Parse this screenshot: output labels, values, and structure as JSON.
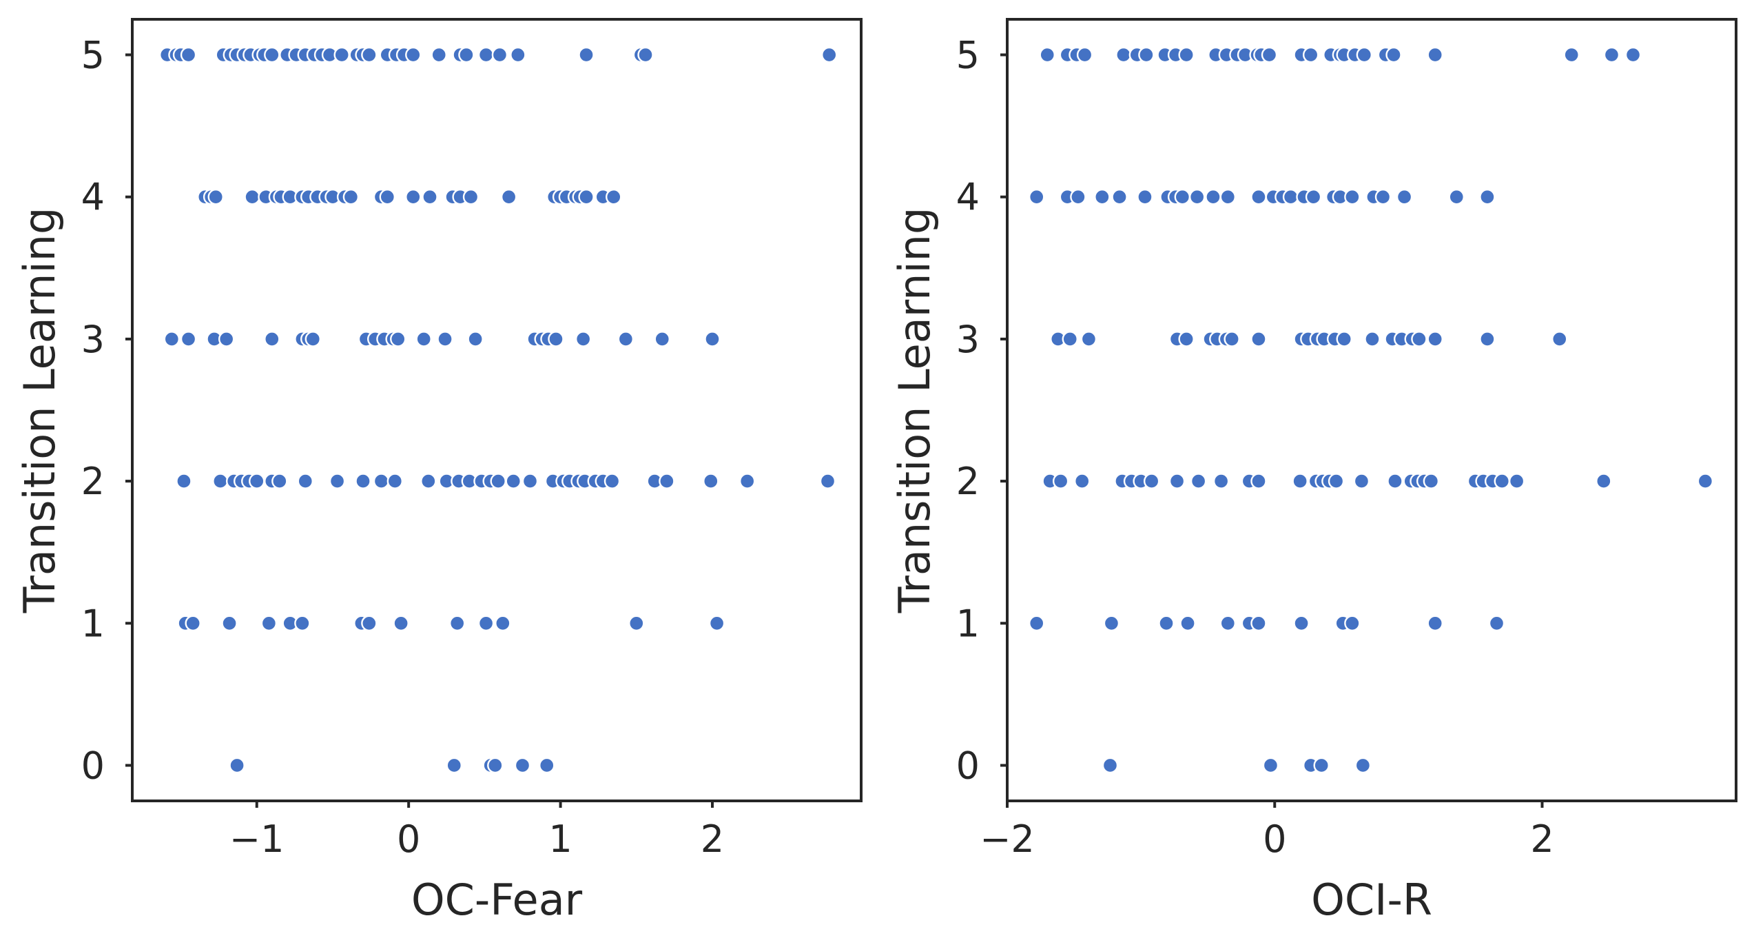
{
  "chart_data": [
    {
      "type": "scatter",
      "xlabel": "OC-Fear",
      "ylabel": "Transition Learning",
      "xlim": [
        -1.82,
        2.98
      ],
      "ylim": [
        -0.25,
        5.25
      ],
      "xticks": [
        -1,
        0,
        1,
        2
      ],
      "xtick_labels": [
        "−1",
        "0",
        "1",
        "2"
      ],
      "yticks": [
        0,
        1,
        2,
        3,
        4,
        5
      ],
      "ytick_labels": [
        "0",
        "1",
        "2",
        "3",
        "4",
        "5"
      ],
      "grid": false,
      "point_color": "#4472c4",
      "points": [
        {
          "x": -1.59,
          "y": 5
        },
        {
          "x": -1.53,
          "y": 5
        },
        {
          "x": -1.5,
          "y": 5
        },
        {
          "x": -1.45,
          "y": 5
        },
        {
          "x": -1.22,
          "y": 5
        },
        {
          "x": -1.17,
          "y": 5
        },
        {
          "x": -1.13,
          "y": 5
        },
        {
          "x": -1.08,
          "y": 5
        },
        {
          "x": -1.04,
          "y": 5
        },
        {
          "x": -0.98,
          "y": 5
        },
        {
          "x": -0.95,
          "y": 5
        },
        {
          "x": -0.9,
          "y": 5
        },
        {
          "x": -0.8,
          "y": 5
        },
        {
          "x": -0.74,
          "y": 5
        },
        {
          "x": -0.68,
          "y": 5
        },
        {
          "x": -0.62,
          "y": 5
        },
        {
          "x": -0.57,
          "y": 5
        },
        {
          "x": -0.52,
          "y": 5
        },
        {
          "x": -0.44,
          "y": 5
        },
        {
          "x": -0.34,
          "y": 5
        },
        {
          "x": -0.3,
          "y": 5
        },
        {
          "x": -0.26,
          "y": 5
        },
        {
          "x": -0.14,
          "y": 5
        },
        {
          "x": -0.08,
          "y": 5
        },
        {
          "x": -0.03,
          "y": 5
        },
        {
          "x": 0.03,
          "y": 5
        },
        {
          "x": 0.2,
          "y": 5
        },
        {
          "x": 0.34,
          "y": 5
        },
        {
          "x": 0.38,
          "y": 5
        },
        {
          "x": 0.51,
          "y": 5
        },
        {
          "x": 0.6,
          "y": 5
        },
        {
          "x": 0.72,
          "y": 5
        },
        {
          "x": 1.17,
          "y": 5
        },
        {
          "x": 1.53,
          "y": 5
        },
        {
          "x": 1.56,
          "y": 5
        },
        {
          "x": 2.77,
          "y": 5
        },
        {
          "x": -1.34,
          "y": 4
        },
        {
          "x": -1.3,
          "y": 4
        },
        {
          "x": -1.27,
          "y": 4
        },
        {
          "x": -1.03,
          "y": 4
        },
        {
          "x": -0.94,
          "y": 4
        },
        {
          "x": -0.87,
          "y": 4
        },
        {
          "x": -0.84,
          "y": 4
        },
        {
          "x": -0.78,
          "y": 4
        },
        {
          "x": -0.7,
          "y": 4
        },
        {
          "x": -0.66,
          "y": 4
        },
        {
          "x": -0.6,
          "y": 4
        },
        {
          "x": -0.54,
          "y": 4
        },
        {
          "x": -0.5,
          "y": 4
        },
        {
          "x": -0.42,
          "y": 4
        },
        {
          "x": -0.38,
          "y": 4
        },
        {
          "x": -0.18,
          "y": 4
        },
        {
          "x": -0.14,
          "y": 4
        },
        {
          "x": 0.03,
          "y": 4
        },
        {
          "x": 0.14,
          "y": 4
        },
        {
          "x": 0.29,
          "y": 4
        },
        {
          "x": 0.34,
          "y": 4
        },
        {
          "x": 0.41,
          "y": 4
        },
        {
          "x": 0.66,
          "y": 4
        },
        {
          "x": 0.96,
          "y": 4
        },
        {
          "x": 1.0,
          "y": 4
        },
        {
          "x": 1.04,
          "y": 4
        },
        {
          "x": 1.1,
          "y": 4
        },
        {
          "x": 1.13,
          "y": 4
        },
        {
          "x": 1.17,
          "y": 4
        },
        {
          "x": 1.28,
          "y": 4
        },
        {
          "x": 1.35,
          "y": 4
        },
        {
          "x": -1.56,
          "y": 3
        },
        {
          "x": -1.45,
          "y": 3
        },
        {
          "x": -1.28,
          "y": 3
        },
        {
          "x": -1.2,
          "y": 3
        },
        {
          "x": -0.9,
          "y": 3
        },
        {
          "x": -0.7,
          "y": 3
        },
        {
          "x": -0.66,
          "y": 3
        },
        {
          "x": -0.63,
          "y": 3
        },
        {
          "x": -0.28,
          "y": 3
        },
        {
          "x": -0.22,
          "y": 3
        },
        {
          "x": -0.16,
          "y": 3
        },
        {
          "x": -0.1,
          "y": 3
        },
        {
          "x": -0.07,
          "y": 3
        },
        {
          "x": 0.1,
          "y": 3
        },
        {
          "x": 0.24,
          "y": 3
        },
        {
          "x": 0.44,
          "y": 3
        },
        {
          "x": 0.83,
          "y": 3
        },
        {
          "x": 0.88,
          "y": 3
        },
        {
          "x": 0.92,
          "y": 3
        },
        {
          "x": 0.97,
          "y": 3
        },
        {
          "x": 1.15,
          "y": 3
        },
        {
          "x": 1.43,
          "y": 3
        },
        {
          "x": 1.67,
          "y": 3
        },
        {
          "x": 2.0,
          "y": 3
        },
        {
          "x": -1.48,
          "y": 2
        },
        {
          "x": -1.24,
          "y": 2
        },
        {
          "x": -1.15,
          "y": 2
        },
        {
          "x": -1.1,
          "y": 2
        },
        {
          "x": -1.05,
          "y": 2
        },
        {
          "x": -1.0,
          "y": 2
        },
        {
          "x": -0.9,
          "y": 2
        },
        {
          "x": -0.85,
          "y": 2
        },
        {
          "x": -0.68,
          "y": 2
        },
        {
          "x": -0.47,
          "y": 2
        },
        {
          "x": -0.3,
          "y": 2
        },
        {
          "x": -0.18,
          "y": 2
        },
        {
          "x": -0.09,
          "y": 2
        },
        {
          "x": 0.13,
          "y": 2
        },
        {
          "x": 0.25,
          "y": 2
        },
        {
          "x": 0.33,
          "y": 2
        },
        {
          "x": 0.4,
          "y": 2
        },
        {
          "x": 0.48,
          "y": 2
        },
        {
          "x": 0.54,
          "y": 2
        },
        {
          "x": 0.59,
          "y": 2
        },
        {
          "x": 0.69,
          "y": 2
        },
        {
          "x": 0.8,
          "y": 2
        },
        {
          "x": 0.95,
          "y": 2
        },
        {
          "x": 1.02,
          "y": 2
        },
        {
          "x": 1.06,
          "y": 2
        },
        {
          "x": 1.12,
          "y": 2
        },
        {
          "x": 1.16,
          "y": 2
        },
        {
          "x": 1.23,
          "y": 2
        },
        {
          "x": 1.28,
          "y": 2
        },
        {
          "x": 1.34,
          "y": 2
        },
        {
          "x": 1.62,
          "y": 2
        },
        {
          "x": 1.7,
          "y": 2
        },
        {
          "x": 1.99,
          "y": 2
        },
        {
          "x": 2.23,
          "y": 2
        },
        {
          "x": 2.76,
          "y": 2
        },
        {
          "x": -1.47,
          "y": 1
        },
        {
          "x": -1.42,
          "y": 1
        },
        {
          "x": -1.18,
          "y": 1
        },
        {
          "x": -0.92,
          "y": 1
        },
        {
          "x": -0.78,
          "y": 1
        },
        {
          "x": -0.7,
          "y": 1
        },
        {
          "x": -0.31,
          "y": 1
        },
        {
          "x": -0.26,
          "y": 1
        },
        {
          "x": -0.05,
          "y": 1
        },
        {
          "x": 0.32,
          "y": 1
        },
        {
          "x": 0.51,
          "y": 1
        },
        {
          "x": 0.62,
          "y": 1
        },
        {
          "x": 1.5,
          "y": 1
        },
        {
          "x": 2.03,
          "y": 1
        },
        {
          "x": -1.13,
          "y": 0
        },
        {
          "x": 0.3,
          "y": 0
        },
        {
          "x": 0.54,
          "y": 0
        },
        {
          "x": 0.57,
          "y": 0
        },
        {
          "x": 0.75,
          "y": 0
        },
        {
          "x": 0.91,
          "y": 0
        }
      ]
    },
    {
      "type": "scatter",
      "xlabel": "OCI-R",
      "ylabel": "Transition Learning",
      "xlim": [
        -2.0,
        3.45
      ],
      "ylim": [
        -0.25,
        5.25
      ],
      "xticks": [
        -2,
        0,
        2
      ],
      "xtick_labels": [
        "−2",
        "0",
        "2"
      ],
      "yticks": [
        0,
        1,
        2,
        3,
        4,
        5
      ],
      "ytick_labels": [
        "0",
        "1",
        "2",
        "3",
        "4",
        "5"
      ],
      "grid": false,
      "point_color": "#4472c4",
      "points": [
        {
          "x": -1.7,
          "y": 5
        },
        {
          "x": -1.55,
          "y": 5
        },
        {
          "x": -1.48,
          "y": 5
        },
        {
          "x": -1.42,
          "y": 5
        },
        {
          "x": -1.13,
          "y": 5
        },
        {
          "x": -1.03,
          "y": 5
        },
        {
          "x": -0.96,
          "y": 5
        },
        {
          "x": -0.82,
          "y": 5
        },
        {
          "x": -0.74,
          "y": 5
        },
        {
          "x": -0.66,
          "y": 5
        },
        {
          "x": -0.44,
          "y": 5
        },
        {
          "x": -0.36,
          "y": 5
        },
        {
          "x": -0.28,
          "y": 5
        },
        {
          "x": -0.22,
          "y": 5
        },
        {
          "x": -0.13,
          "y": 5
        },
        {
          "x": -0.1,
          "y": 5
        },
        {
          "x": -0.04,
          "y": 5
        },
        {
          "x": 0.2,
          "y": 5
        },
        {
          "x": 0.27,
          "y": 5
        },
        {
          "x": 0.42,
          "y": 5
        },
        {
          "x": 0.49,
          "y": 5
        },
        {
          "x": 0.52,
          "y": 5
        },
        {
          "x": 0.6,
          "y": 5
        },
        {
          "x": 0.67,
          "y": 5
        },
        {
          "x": 0.83,
          "y": 5
        },
        {
          "x": 0.89,
          "y": 5
        },
        {
          "x": 1.2,
          "y": 5
        },
        {
          "x": 2.22,
          "y": 5
        },
        {
          "x": 2.52,
          "y": 5
        },
        {
          "x": 2.68,
          "y": 5
        },
        {
          "x": -1.78,
          "y": 4
        },
        {
          "x": -1.55,
          "y": 4
        },
        {
          "x": -1.47,
          "y": 4
        },
        {
          "x": -1.29,
          "y": 4
        },
        {
          "x": -1.16,
          "y": 4
        },
        {
          "x": -0.97,
          "y": 4
        },
        {
          "x": -0.8,
          "y": 4
        },
        {
          "x": -0.74,
          "y": 4
        },
        {
          "x": -0.69,
          "y": 4
        },
        {
          "x": -0.58,
          "y": 4
        },
        {
          "x": -0.46,
          "y": 4
        },
        {
          "x": -0.35,
          "y": 4
        },
        {
          "x": -0.12,
          "y": 4
        },
        {
          "x": -0.01,
          "y": 4
        },
        {
          "x": 0.06,
          "y": 4
        },
        {
          "x": 0.12,
          "y": 4
        },
        {
          "x": 0.22,
          "y": 4
        },
        {
          "x": 0.29,
          "y": 4
        },
        {
          "x": 0.44,
          "y": 4
        },
        {
          "x": 0.49,
          "y": 4
        },
        {
          "x": 0.58,
          "y": 4
        },
        {
          "x": 0.74,
          "y": 4
        },
        {
          "x": 0.81,
          "y": 4
        },
        {
          "x": 0.97,
          "y": 4
        },
        {
          "x": 1.36,
          "y": 4
        },
        {
          "x": 1.59,
          "y": 4
        },
        {
          "x": -1.62,
          "y": 3
        },
        {
          "x": -1.53,
          "y": 3
        },
        {
          "x": -1.39,
          "y": 3
        },
        {
          "x": -0.73,
          "y": 3
        },
        {
          "x": -0.66,
          "y": 3
        },
        {
          "x": -0.48,
          "y": 3
        },
        {
          "x": -0.43,
          "y": 3
        },
        {
          "x": -0.36,
          "y": 3
        },
        {
          "x": -0.32,
          "y": 3
        },
        {
          "x": -0.12,
          "y": 3
        },
        {
          "x": 0.2,
          "y": 3
        },
        {
          "x": 0.25,
          "y": 3
        },
        {
          "x": 0.32,
          "y": 3
        },
        {
          "x": 0.37,
          "y": 3
        },
        {
          "x": 0.45,
          "y": 3
        },
        {
          "x": 0.52,
          "y": 3
        },
        {
          "x": 0.73,
          "y": 3
        },
        {
          "x": 0.88,
          "y": 3
        },
        {
          "x": 0.95,
          "y": 3
        },
        {
          "x": 1.03,
          "y": 3
        },
        {
          "x": 1.08,
          "y": 3
        },
        {
          "x": 1.2,
          "y": 3
        },
        {
          "x": 1.59,
          "y": 3
        },
        {
          "x": 2.13,
          "y": 3
        },
        {
          "x": -1.68,
          "y": 2
        },
        {
          "x": -1.6,
          "y": 2
        },
        {
          "x": -1.44,
          "y": 2
        },
        {
          "x": -1.14,
          "y": 2
        },
        {
          "x": -1.07,
          "y": 2
        },
        {
          "x": -1.0,
          "y": 2
        },
        {
          "x": -0.92,
          "y": 2
        },
        {
          "x": -0.73,
          "y": 2
        },
        {
          "x": -0.57,
          "y": 2
        },
        {
          "x": -0.4,
          "y": 2
        },
        {
          "x": -0.19,
          "y": 2
        },
        {
          "x": -0.12,
          "y": 2
        },
        {
          "x": 0.19,
          "y": 2
        },
        {
          "x": 0.31,
          "y": 2
        },
        {
          "x": 0.36,
          "y": 2
        },
        {
          "x": 0.41,
          "y": 2
        },
        {
          "x": 0.46,
          "y": 2
        },
        {
          "x": 0.65,
          "y": 2
        },
        {
          "x": 0.9,
          "y": 2
        },
        {
          "x": 1.02,
          "y": 2
        },
        {
          "x": 1.07,
          "y": 2
        },
        {
          "x": 1.12,
          "y": 2
        },
        {
          "x": 1.17,
          "y": 2
        },
        {
          "x": 1.5,
          "y": 2
        },
        {
          "x": 1.56,
          "y": 2
        },
        {
          "x": 1.63,
          "y": 2
        },
        {
          "x": 1.7,
          "y": 2
        },
        {
          "x": 1.81,
          "y": 2
        },
        {
          "x": 2.46,
          "y": 2
        },
        {
          "x": 3.22,
          "y": 2
        },
        {
          "x": -1.78,
          "y": 1
        },
        {
          "x": -1.22,
          "y": 1
        },
        {
          "x": -0.81,
          "y": 1
        },
        {
          "x": -0.65,
          "y": 1
        },
        {
          "x": -0.35,
          "y": 1
        },
        {
          "x": -0.19,
          "y": 1
        },
        {
          "x": -0.12,
          "y": 1
        },
        {
          "x": 0.2,
          "y": 1
        },
        {
          "x": 0.51,
          "y": 1
        },
        {
          "x": 0.58,
          "y": 1
        },
        {
          "x": 1.2,
          "y": 1
        },
        {
          "x": 1.66,
          "y": 1
        },
        {
          "x": -1.23,
          "y": 0
        },
        {
          "x": -0.03,
          "y": 0
        },
        {
          "x": 0.27,
          "y": 0
        },
        {
          "x": 0.35,
          "y": 0
        },
        {
          "x": 0.66,
          "y": 0
        }
      ]
    }
  ]
}
